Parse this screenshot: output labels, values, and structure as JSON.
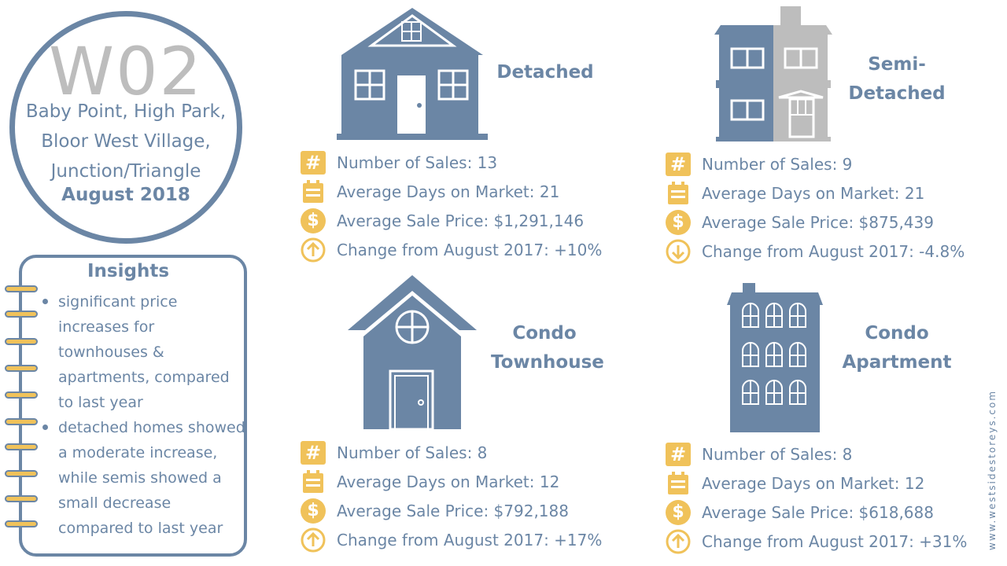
{
  "header": {
    "code": "W02",
    "area_lines": [
      "Baby Point,  High Park,",
      "Bloor West Village,",
      "Junction/Triangle"
    ],
    "date": "August 2018"
  },
  "insights": {
    "title": "Insights",
    "items": [
      "significant price increases for townhouses & apartments, compared to last year",
      "detached homes showed a moderate increase, while semis showed a small decrease compared to last year"
    ]
  },
  "properties": [
    {
      "title": "Detached",
      "sales": "Number of Sales:  13",
      "days": "Average Days on Market:  21",
      "price": "Average Sale Price:  $1,291,146",
      "change": "Change from August 2017:  +10%",
      "direction": "up"
    },
    {
      "title": "Semi-\nDetached",
      "sales": "Number of Sales:  9",
      "days": "Average Days on Market:  21",
      "price": "Average Sale Price:  $875,439",
      "change": "Change from August 2017:  -4.8%",
      "direction": "down"
    },
    {
      "title": "Condo\nTownhouse",
      "sales": "Number of Sales:  8",
      "days": "Average Days on Market:  12",
      "price": "Average Sale Price:  $792,188",
      "change": "Change from August 2017:  +17%",
      "direction": "up"
    },
    {
      "title": "Condo\nApartment",
      "sales": "Number of Sales:  8",
      "days": "Average Days on Market:  12",
      "price": "Average Sale Price:  $618,688",
      "change": "Change from August 2017:  +31%",
      "direction": "up"
    }
  ],
  "icons": {
    "sales": "hash-icon",
    "days": "calendar-icon",
    "price": "dollar-icon",
    "change_up": "arrow-up-circle-icon",
    "change_down": "arrow-down-circle-icon"
  },
  "website": "www.westsidestoreys.com",
  "colors": {
    "primary": "#6b86a5",
    "accent": "#f0c25a",
    "grey": "#bdbdbd"
  }
}
